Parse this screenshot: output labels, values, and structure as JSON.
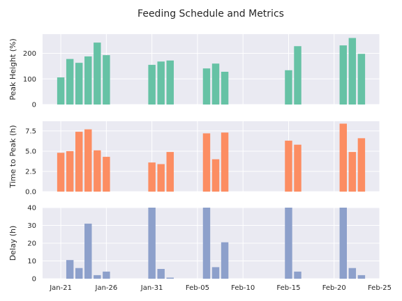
{
  "chart_data": {
    "type": "bar",
    "title": "Feeding Schedule and Metrics",
    "xlabel": "",
    "x_tick_labels": [
      "Jan-21",
      "Jan-26",
      "Jan-31",
      "Feb-05",
      "Feb-10",
      "Feb-15",
      "Feb-20",
      "Feb-25"
    ],
    "x_range": [
      "2025-01-19",
      "2025-02-25"
    ],
    "dates": [
      "2025-01-21",
      "2025-01-22",
      "2025-01-23",
      "2025-01-24",
      "2025-01-25",
      "2025-01-26",
      "2025-01-31",
      "2025-02-01",
      "2025-02-02",
      "2025-02-06",
      "2025-02-07",
      "2025-02-08",
      "2025-02-15",
      "2025-02-16",
      "2025-02-21",
      "2025-02-22",
      "2025-02-23"
    ],
    "grid": true,
    "panels": [
      {
        "ylabel": "Peak Height (%)",
        "color": "#66c2a5",
        "ylim": [
          0,
          275
        ],
        "yticks": [
          0,
          100,
          200
        ],
        "ytick_labels": [
          "0",
          "100",
          "200"
        ],
        "values": [
          106,
          178,
          163,
          188,
          242,
          193,
          155,
          168,
          172,
          141,
          160,
          128,
          134,
          228,
          231,
          260,
          198
        ]
      },
      {
        "ylabel": "Time to Peak (h)",
        "color": "#fc8d62",
        "ylim": [
          0,
          8.7
        ],
        "yticks": [
          0,
          2.5,
          5.0,
          7.5
        ],
        "ytick_labels": [
          "0.0",
          "2.5",
          "5.0",
          "7.5"
        ],
        "values": [
          4.8,
          5.0,
          7.4,
          7.7,
          5.1,
          4.3,
          3.6,
          3.4,
          4.9,
          7.2,
          4.0,
          7.3,
          6.3,
          5.8,
          8.4,
          4.9,
          6.6
        ]
      },
      {
        "ylabel": "Delay (h)",
        "color": "#8da0cb",
        "ylim": [
          0,
          40
        ],
        "yticks": [
          0,
          10,
          20,
          30,
          40
        ],
        "ytick_labels": [
          "0",
          "10",
          "20",
          "30",
          "40"
        ],
        "values": [
          null,
          10.5,
          6,
          31,
          2,
          4,
          40,
          5.5,
          0.6,
          40,
          6.5,
          20.5,
          40,
          4,
          40,
          6,
          2
        ]
      }
    ]
  }
}
